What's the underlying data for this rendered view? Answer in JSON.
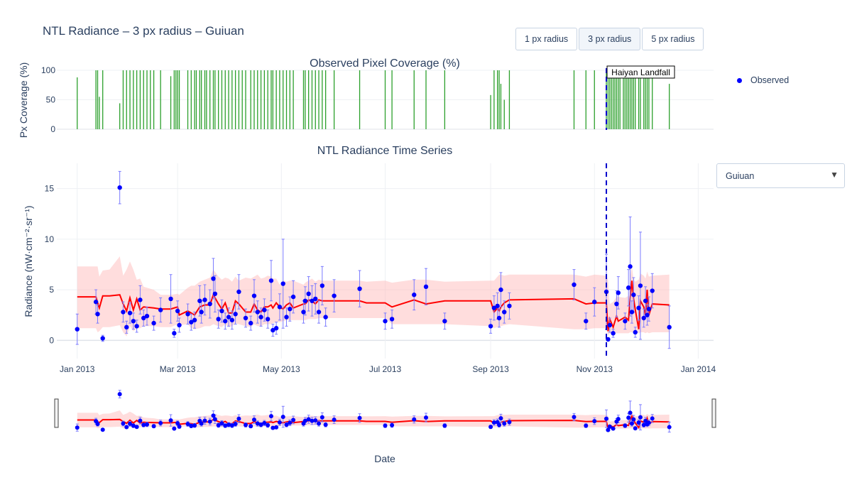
{
  "title": "NTL Radiance – 3 px radius – Guiuan",
  "buttons": [
    {
      "label": "1 px radius",
      "active": false
    },
    {
      "label": "3 px radius",
      "active": true
    },
    {
      "label": "5 px radius",
      "active": false
    }
  ],
  "legend": {
    "observed_label": "Observed"
  },
  "dropdown": {
    "selected": "Guiuan",
    "arrow_icon": "triangle-down-icon"
  },
  "colors": {
    "observed": "#0000ff",
    "trend": "#ff0000",
    "band": "#ffb3b3",
    "coverage": "#2ca02c",
    "event": "#0000cc"
  },
  "chart_data": [
    {
      "type": "bar",
      "title": "Observed Pixel Coverage (%)",
      "ylabel": "Px Coverage (%)",
      "ylim": [
        0,
        100
      ],
      "yticks": [
        "0",
        "50",
        "100"
      ],
      "x": [
        "2013-01-01",
        "2013-01-12",
        "2013-01-13",
        "2013-01-14",
        "2013-01-16",
        "2013-01-26",
        "2013-01-28",
        "2013-01-30",
        "2013-02-01",
        "2013-02-03",
        "2013-02-05",
        "2013-02-07",
        "2013-02-09",
        "2013-02-11",
        "2013-02-13",
        "2013-02-15",
        "2013-02-19",
        "2013-02-25",
        "2013-02-27",
        "2013-02-28",
        "2013-03-01",
        "2013-03-02",
        "2013-03-07",
        "2013-03-09",
        "2013-03-11",
        "2013-03-12",
        "2013-03-14",
        "2013-03-15",
        "2013-03-17",
        "2013-03-18",
        "2013-03-20",
        "2013-03-22",
        "2013-03-23",
        "2013-03-25",
        "2013-03-27",
        "2013-03-29",
        "2013-03-31",
        "2013-04-02",
        "2013-04-04",
        "2013-04-06",
        "2013-04-08",
        "2013-04-10",
        "2013-04-13",
        "2013-04-15",
        "2013-04-17",
        "2013-04-19",
        "2013-04-21",
        "2013-04-23",
        "2013-04-25",
        "2013-04-26",
        "2013-04-28",
        "2013-04-30",
        "2013-05-02",
        "2013-05-04",
        "2013-05-06",
        "2013-05-08",
        "2013-05-14",
        "2013-05-15",
        "2013-05-17",
        "2013-05-19",
        "2013-05-21",
        "2013-05-23",
        "2013-05-25",
        "2013-05-27",
        "2013-06-01",
        "2013-06-16",
        "2013-07-01",
        "2013-07-05",
        "2013-07-18",
        "2013-07-25",
        "2013-08-05",
        "2013-09-01",
        "2013-09-03",
        "2013-09-05",
        "2013-09-06",
        "2013-09-07",
        "2013-09-09",
        "2013-09-12",
        "2013-10-20",
        "2013-10-27",
        "2013-11-01",
        "2013-11-08",
        "2013-11-09",
        "2013-11-10",
        "2013-11-11",
        "2013-11-12",
        "2013-11-13",
        "2013-11-14",
        "2013-11-15",
        "2013-11-16",
        "2013-11-18",
        "2013-11-19",
        "2013-11-20",
        "2013-11-21",
        "2013-11-22",
        "2013-11-23",
        "2013-11-24",
        "2013-11-25",
        "2013-11-27",
        "2013-11-28",
        "2013-11-30",
        "2013-12-01",
        "2013-12-02",
        "2013-12-03",
        "2013-12-05",
        "2013-12-15"
      ],
      "values": [
        88,
        100,
        100,
        55,
        100,
        44,
        100,
        100,
        100,
        100,
        100,
        100,
        100,
        100,
        100,
        100,
        100,
        90,
        100,
        100,
        100,
        100,
        100,
        100,
        100,
        100,
        100,
        100,
        100,
        100,
        100,
        100,
        100,
        100,
        100,
        100,
        100,
        100,
        100,
        100,
        100,
        100,
        100,
        100,
        100,
        100,
        100,
        100,
        100,
        100,
        100,
        100,
        100,
        100,
        100,
        100,
        100,
        100,
        100,
        100,
        100,
        100,
        100,
        100,
        100,
        100,
        100,
        100,
        100,
        100,
        100,
        58,
        100,
        100,
        100,
        77,
        50,
        100,
        100,
        100,
        100,
        100,
        100,
        100,
        100,
        100,
        100,
        100,
        100,
        100,
        100,
        100,
        100,
        100,
        100,
        100,
        100,
        100,
        100,
        100,
        100,
        100,
        100,
        100,
        100,
        77
      ]
    },
    {
      "type": "scatter",
      "title": "NTL Radiance Time Series",
      "ylabel": "Radiance (nW·cm⁻²·sr⁻¹)",
      "xlabel": "Date",
      "ylim": [
        -1.8,
        17.5
      ],
      "yticks": [
        "0",
        "5",
        "10",
        "15"
      ],
      "xticks": [
        "Jan 2013",
        "Mar 2013",
        "May 2013",
        "Jul 2013",
        "Sep 2013",
        "Nov 2013",
        "Jan 2014"
      ],
      "xlim": [
        "2012-12-20",
        "2014-01-10"
      ],
      "legend": "top-right",
      "grid": true,
      "series": [
        {
          "name": "Observed",
          "x": [
            "2013-01-01",
            "2013-01-12",
            "2013-01-13",
            "2013-01-16",
            "2013-01-26",
            "2013-01-28",
            "2013-01-30",
            "2013-02-01",
            "2013-02-03",
            "2013-02-05",
            "2013-02-07",
            "2013-02-09",
            "2013-02-11",
            "2013-02-15",
            "2013-02-19",
            "2013-02-25",
            "2013-02-27",
            "2013-03-01",
            "2013-03-02",
            "2013-03-07",
            "2013-03-09",
            "2013-03-11",
            "2013-03-14",
            "2013-03-15",
            "2013-03-17",
            "2013-03-20",
            "2013-03-22",
            "2013-03-23",
            "2013-03-25",
            "2013-03-27",
            "2013-03-29",
            "2013-03-31",
            "2013-04-02",
            "2013-04-04",
            "2013-04-06",
            "2013-04-10",
            "2013-04-13",
            "2013-04-15",
            "2013-04-17",
            "2013-04-19",
            "2013-04-21",
            "2013-04-23",
            "2013-04-25",
            "2013-04-26",
            "2013-04-28",
            "2013-04-30",
            "2013-05-02",
            "2013-05-04",
            "2013-05-06",
            "2013-05-08",
            "2013-05-14",
            "2013-05-15",
            "2013-05-17",
            "2013-05-19",
            "2013-05-21",
            "2013-05-23",
            "2013-05-25",
            "2013-05-27",
            "2013-06-01",
            "2013-06-16",
            "2013-07-01",
            "2013-07-05",
            "2013-07-18",
            "2013-07-25",
            "2013-08-05",
            "2013-09-01",
            "2013-09-03",
            "2013-09-05",
            "2013-09-06",
            "2013-09-07",
            "2013-09-09",
            "2013-09-12",
            "2013-10-20",
            "2013-10-27",
            "2013-11-01",
            "2013-11-08",
            "2013-11-09",
            "2013-11-10",
            "2013-11-12",
            "2013-11-14",
            "2013-11-15",
            "2013-11-19",
            "2013-11-21",
            "2013-11-22",
            "2013-11-23",
            "2013-11-24",
            "2013-11-25",
            "2013-11-27",
            "2013-11-28",
            "2013-11-30",
            "2013-12-01",
            "2013-12-02",
            "2013-12-03",
            "2013-12-05",
            "2013-12-15"
          ],
          "y": [
            1.1,
            3.8,
            2.6,
            0.2,
            15.1,
            2.8,
            1.3,
            2.7,
            1.9,
            1.4,
            4.0,
            2.2,
            2.4,
            1.7,
            3.0,
            4.1,
            0.7,
            2.9,
            1.5,
            2.6,
            1.8,
            2.0,
            3.9,
            2.8,
            4.0,
            3.6,
            6.1,
            4.6,
            2.1,
            2.9,
            1.9,
            2.3,
            2.0,
            2.6,
            4.8,
            2.2,
            1.7,
            4.4,
            2.8,
            2.3,
            3.0,
            2.1,
            5.9,
            1.0,
            1.2,
            3.3,
            5.6,
            2.3,
            3.1,
            4.3,
            2.8,
            3.9,
            4.6,
            3.9,
            4.1,
            2.8,
            5.4,
            2.3,
            4.4,
            5.1,
            1.9,
            2.1,
            4.5,
            5.3,
            1.9,
            1.4,
            3.2,
            3.4,
            2.2,
            5.0,
            2.8,
            3.4,
            5.5,
            1.9,
            3.8,
            4.8,
            0.1,
            1.5,
            0.7,
            3.6,
            4.7,
            1.9,
            5.2,
            7.3,
            2.8,
            4.5,
            0.8,
            3.2,
            5.4,
            2.2,
            3.9,
            2.5,
            3.1,
            4.9,
            1.3
          ],
          "error": [
            1.5,
            1.2,
            0.9,
            0.3,
            1.6,
            1.0,
            0.6,
            1.0,
            0.8,
            0.6,
            1.4,
            0.8,
            0.9,
            0.7,
            1.2,
            2.4,
            0.4,
            1.0,
            0.7,
            1.0,
            0.8,
            0.8,
            1.5,
            1.1,
            1.5,
            1.4,
            2.0,
            1.8,
            0.9,
            1.1,
            0.8,
            0.9,
            0.9,
            1.0,
            1.7,
            0.9,
            0.7,
            1.6,
            1.1,
            0.9,
            1.1,
            0.9,
            2.0,
            0.6,
            0.6,
            1.3,
            4.4,
            0.9,
            1.2,
            1.6,
            1.1,
            1.4,
            1.7,
            1.5,
            1.5,
            1.1,
            1.9,
            0.9,
            1.6,
            1.8,
            0.8,
            0.9,
            1.5,
            1.8,
            0.8,
            0.7,
            1.2,
            1.3,
            0.9,
            1.7,
            1.1,
            1.3,
            1.5,
            0.8,
            1.4,
            3.7,
            0.1,
            0.7,
            0.4,
            1.3,
            1.6,
            0.8,
            1.8,
            4.9,
            1.1,
            1.7,
            0.5,
            1.2,
            5.3,
            0.9,
            1.4,
            1.0,
            1.2,
            1.7,
            2.1
          ]
        },
        {
          "name": "",
          "x": [
            "2013-01-01",
            "2013-01-12",
            "2013-01-13",
            "2013-01-14",
            "2013-01-16",
            "2013-01-20",
            "2013-01-26",
            "2013-01-28",
            "2013-01-30",
            "2013-02-01",
            "2013-02-03",
            "2013-02-05",
            "2013-02-07",
            "2013-02-09",
            "2013-02-15",
            "2013-02-19",
            "2013-02-25",
            "2013-03-01",
            "2013-03-02",
            "2013-03-07",
            "2013-03-09",
            "2013-03-11",
            "2013-03-14",
            "2013-03-17",
            "2013-03-20",
            "2013-03-22",
            "2013-03-25",
            "2013-03-27",
            "2013-03-29",
            "2013-03-31",
            "2013-04-02",
            "2013-04-04",
            "2013-04-06",
            "2013-04-10",
            "2013-04-13",
            "2013-04-15",
            "2013-04-17",
            "2013-04-19",
            "2013-04-21",
            "2013-04-23",
            "2013-04-25",
            "2013-04-26",
            "2013-04-28",
            "2013-04-30",
            "2013-05-02",
            "2013-05-04",
            "2013-05-06",
            "2013-05-08",
            "2013-05-14",
            "2013-05-15",
            "2013-05-17",
            "2013-05-19",
            "2013-05-21",
            "2013-05-23",
            "2013-05-25",
            "2013-05-27",
            "2013-06-01",
            "2013-06-16",
            "2013-06-20",
            "2013-07-01",
            "2013-07-05",
            "2013-07-18",
            "2013-07-25",
            "2013-08-05",
            "2013-09-01",
            "2013-09-03",
            "2013-09-05",
            "2013-09-06",
            "2013-09-07",
            "2013-09-09",
            "2013-09-12",
            "2013-10-20",
            "2013-10-27",
            "2013-11-01",
            "2013-11-08",
            "2013-11-09",
            "2013-11-10",
            "2013-11-12",
            "2013-11-14",
            "2013-11-15",
            "2013-11-19",
            "2013-11-21",
            "2013-11-22",
            "2013-11-23",
            "2013-11-24",
            "2013-11-25",
            "2013-11-27",
            "2013-11-28",
            "2013-11-30",
            "2013-12-01",
            "2013-12-02",
            "2013-12-03",
            "2013-12-05",
            "2013-12-15"
          ],
          "y": [
            4.3,
            4.3,
            3.7,
            3.2,
            4.4,
            4.4,
            4.5,
            3.6,
            2.9,
            4.2,
            3.0,
            4.1,
            3.0,
            3.3,
            3.2,
            3.1,
            3.1,
            3.3,
            2.5,
            2.9,
            2.7,
            2.5,
            3.3,
            3.5,
            3.5,
            4.5,
            3.6,
            3.1,
            3.7,
            2.7,
            2.7,
            3.9,
            3.6,
            2.8,
            2.8,
            3.6,
            3.0,
            2.8,
            3.3,
            3.3,
            3.5,
            3.2,
            3.7,
            3.3,
            3.1,
            3.5,
            3.7,
            3.2,
            3.6,
            3.6,
            4.0,
            3.9,
            3.6,
            4.0,
            3.9,
            3.9,
            3.9,
            3.9,
            3.7,
            3.7,
            3.3,
            4.0,
            3.6,
            3.9,
            3.9,
            2.8,
            3.2,
            2.9,
            3.3,
            3.7,
            4.0,
            4.1,
            3.6,
            3.7,
            3.7,
            0.9,
            2.1,
            1.3,
            2.4,
            1.9,
            2.3,
            2.0,
            4.2,
            5.9,
            4.1,
            3.0,
            1.1,
            3.9,
            3.3,
            2.5,
            5.0,
            2.5,
            3.6,
            3.5
          ],
          "band_low": [
            1.2,
            1.2,
            0.8,
            0.9,
            1.3,
            1.3,
            1.5,
            0.8,
            0.4,
            1.4,
            0.9,
            1.2,
            1.2,
            1.4,
            1.4,
            1.3,
            1.3,
            1.6,
            1.5,
            1.6,
            1.2,
            1.1,
            1.2,
            1.4,
            1.4,
            1.6,
            1.4,
            1.3,
            1.6,
            1.3,
            1.4,
            1.7,
            1.6,
            1.4,
            1.3,
            1.6,
            1.4,
            1.4,
            1.6,
            1.6,
            1.6,
            1.7,
            1.8,
            1.8,
            1.9,
            2.0,
            2.0,
            2.0,
            2.0,
            2.0,
            2.1,
            2.1,
            2.1,
            2.2,
            2.2,
            2.2,
            2.2,
            2.2,
            2.2,
            2.2,
            1.6,
            1.6,
            1.6,
            1.6,
            1.4,
            1.2,
            1.3,
            1.3,
            1.4,
            1.5,
            1.6,
            1.1,
            1.1,
            1.2,
            1.2,
            0.5,
            0.7,
            0.6,
            0.7,
            0.7,
            0.7,
            0.7,
            0.8,
            0.8,
            0.8,
            0.8,
            0.7,
            0.8,
            0.8,
            0.7,
            0.8,
            0.7,
            0.8,
            0.8
          ],
          "band_high": [
            7.3,
            7.3,
            7.3,
            6.3,
            6.9,
            7.0,
            8.3,
            6.4,
            7.0,
            7.8,
            7.0,
            6.0,
            6.1,
            5.3,
            5.0,
            4.5,
            4.5,
            4.6,
            4.5,
            5.2,
            5.4,
            5.4,
            5.8,
            6.0,
            6.2,
            7.0,
            6.3,
            6.0,
            6.2,
            6.1,
            5.8,
            6.3,
            5.9,
            6.2,
            6.1,
            6.3,
            6.5,
            6.1,
            6.2,
            6.4,
            6.3,
            6.1,
            6.1,
            5.5,
            5.9,
            5.8,
            5.9,
            5.9,
            5.5,
            5.7,
            5.9,
            6.1,
            5.8,
            6.0,
            5.9,
            5.9,
            5.9,
            5.9,
            5.8,
            5.9,
            5.7,
            6.0,
            6.0,
            5.8,
            5.9,
            5.9,
            6.3,
            6.5,
            6.5,
            6.4,
            6.5,
            6.5,
            6.3,
            6.5,
            6.4,
            6.0,
            3.6,
            3.8,
            4.3,
            4.3,
            4.2,
            4.4,
            6.2,
            7.3,
            6.0,
            5.8,
            6.0,
            6.6,
            6.4,
            6.1,
            6.8,
            6.3,
            6.4,
            6.5
          ]
        }
      ],
      "annotations": [
        {
          "x": "2013-11-08",
          "text": "Haiyan Landfall"
        }
      ]
    }
  ]
}
